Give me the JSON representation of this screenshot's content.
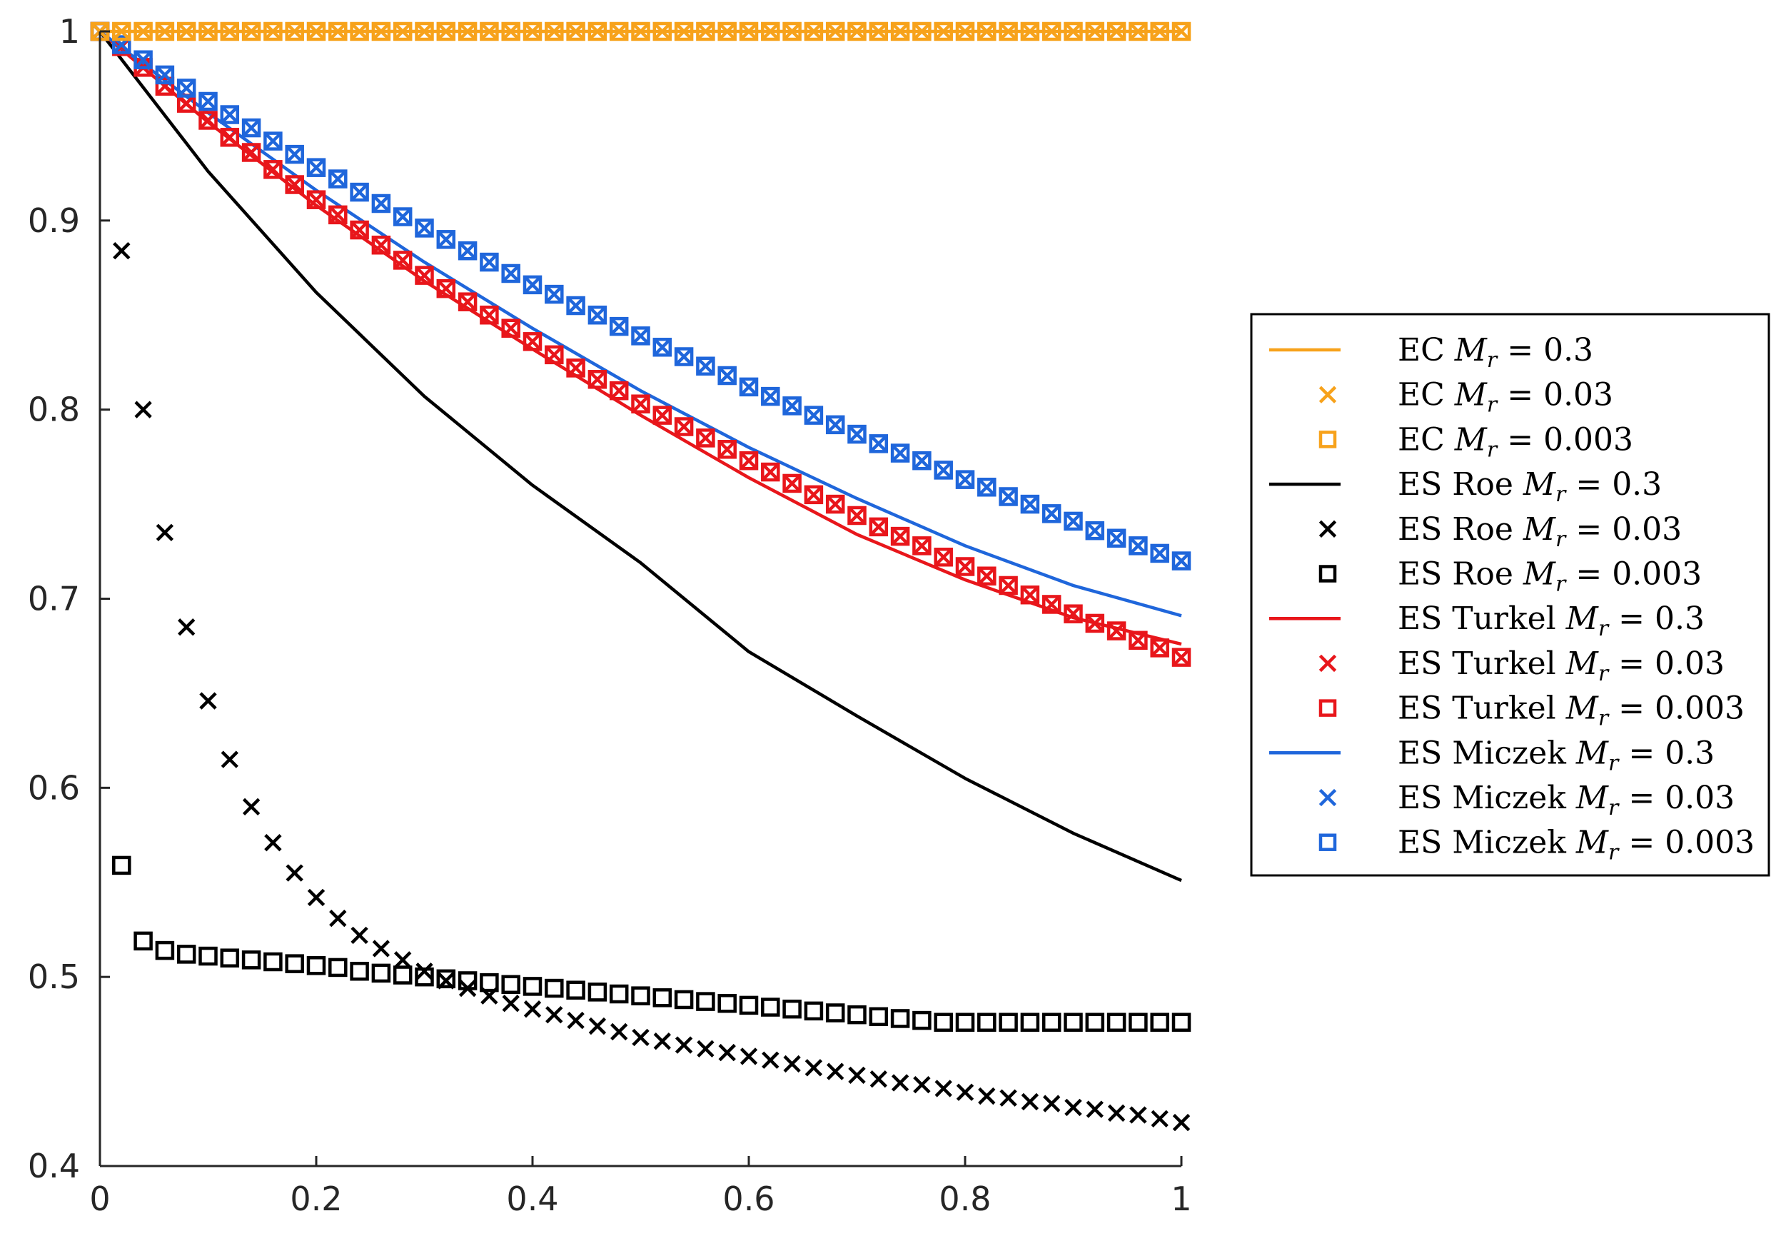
{
  "chart_data": {
    "type": "line",
    "title": "",
    "xlabel": "",
    "ylabel": "",
    "xlim": [
      0,
      1
    ],
    "ylim": [
      0.4,
      1
    ],
    "x_ticks": [
      0,
      0.2,
      0.4,
      0.6,
      0.8,
      1
    ],
    "x_tick_labels": [
      "0",
      "0.2",
      "0.4",
      "0.6",
      "0.8",
      "1"
    ],
    "y_ticks": [
      0.4,
      0.5,
      0.6,
      0.7,
      0.8,
      0.9,
      1
    ],
    "y_tick_labels": [
      "0.4",
      "0.5",
      "0.6",
      "0.7",
      "0.8",
      "0.9",
      "1"
    ],
    "grid": false,
    "legend_position": "outside-right",
    "colors": {
      "ec": "#f7a21b",
      "roe": "#000000",
      "turkel": "#e8161b",
      "miczek": "#1f66db",
      "axis": "#262626"
    },
    "marker_x": [
      0,
      0.02,
      0.04,
      0.06,
      0.08,
      0.1,
      0.12,
      0.14,
      0.16,
      0.18,
      0.2,
      0.22,
      0.24,
      0.26,
      0.28,
      0.3,
      0.32,
      0.34,
      0.36,
      0.38,
      0.4,
      0.42,
      0.44,
      0.46,
      0.48,
      0.5,
      0.52,
      0.54,
      0.56,
      0.58,
      0.6,
      0.62,
      0.64,
      0.66,
      0.68,
      0.7,
      0.72,
      0.74,
      0.76,
      0.78,
      0.8,
      0.82,
      0.84,
      0.86,
      0.88,
      0.9,
      0.92,
      0.94,
      0.96,
      0.98,
      1
    ],
    "line_x": [
      0,
      0.1,
      0.2,
      0.3,
      0.4,
      0.5,
      0.6,
      0.7,
      0.8,
      0.9,
      1
    ],
    "series": [
      {
        "name": "EC M_r = 0.3",
        "label_prefix": "EC",
        "mach_value": "0.3",
        "color": "#f7a21b",
        "style": "line",
        "y": [
          1,
          1,
          1,
          1,
          1,
          1,
          1,
          1,
          1,
          1,
          1
        ]
      },
      {
        "name": "EC M_r = 0.03",
        "label_prefix": "EC",
        "mach_value": "0.03",
        "color": "#f7a21b",
        "style": "x",
        "y": [
          1,
          1,
          1,
          1,
          1,
          1,
          1,
          1,
          1,
          1,
          1,
          1,
          1,
          1,
          1,
          1,
          1,
          1,
          1,
          1,
          1,
          1,
          1,
          1,
          1,
          1,
          1,
          1,
          1,
          1,
          1,
          1,
          1,
          1,
          1,
          1,
          1,
          1,
          1,
          1,
          1,
          1,
          1,
          1,
          1,
          1,
          1,
          1,
          1,
          1,
          1
        ]
      },
      {
        "name": "EC M_r = 0.003",
        "label_prefix": "EC",
        "mach_value": "0.003",
        "color": "#f7a21b",
        "style": "square",
        "y": [
          1,
          1,
          1,
          1,
          1,
          1,
          1,
          1,
          1,
          1,
          1,
          1,
          1,
          1,
          1,
          1,
          1,
          1,
          1,
          1,
          1,
          1,
          1,
          1,
          1,
          1,
          1,
          1,
          1,
          1,
          1,
          1,
          1,
          1,
          1,
          1,
          1,
          1,
          1,
          1,
          1,
          1,
          1,
          1,
          1,
          1,
          1,
          1,
          1,
          1,
          1
        ]
      },
      {
        "name": "ES Roe M_r = 0.3",
        "label_prefix": "ES Roe",
        "mach_value": "0.3",
        "color": "#000000",
        "style": "line",
        "y": [
          1,
          0.926,
          0.862,
          0.807,
          0.76,
          0.719,
          0.672,
          0.638,
          0.605,
          0.576,
          0.551
        ]
      },
      {
        "name": "ES Roe M_r = 0.03",
        "label_prefix": "ES Roe",
        "mach_value": "0.03",
        "color": "#000000",
        "style": "x",
        "y": [
          1,
          0.884,
          0.8,
          0.735,
          0.685,
          0.646,
          0.615,
          0.59,
          0.571,
          0.555,
          0.542,
          0.531,
          0.522,
          0.515,
          0.509,
          0.503,
          0.498,
          0.494,
          0.49,
          0.486,
          0.483,
          0.48,
          0.477,
          0.474,
          0.471,
          0.468,
          0.466,
          0.464,
          0.462,
          0.46,
          0.458,
          0.456,
          0.454,
          0.452,
          0.45,
          0.448,
          0.446,
          0.444,
          0.443,
          0.441,
          0.439,
          0.437,
          0.436,
          0.434,
          0.433,
          0.431,
          0.43,
          0.428,
          0.427,
          0.425,
          0.423
        ]
      },
      {
        "name": "ES Roe M_r = 0.003",
        "label_prefix": "ES Roe",
        "mach_value": "0.003",
        "color": "#000000",
        "style": "square",
        "y": [
          1,
          0.559,
          0.519,
          0.514,
          0.512,
          0.511,
          0.51,
          0.509,
          0.508,
          0.507,
          0.506,
          0.505,
          0.503,
          0.502,
          0.501,
          0.5,
          0.499,
          0.498,
          0.497,
          0.496,
          0.495,
          0.494,
          0.493,
          0.492,
          0.491,
          0.49,
          0.489,
          0.488,
          0.487,
          0.486,
          0.485,
          0.484,
          0.483,
          0.482,
          0.481,
          0.48,
          0.479,
          0.478,
          0.477,
          0.476,
          0.476,
          0.476,
          0.476,
          0.476,
          0.476,
          0.476,
          0.476,
          0.476,
          0.476,
          0.476,
          0.476
        ]
      },
      {
        "name": "ES Turkel M_r = 0.3",
        "label_prefix": "ES Turkel",
        "mach_value": "0.3",
        "color": "#e8161b",
        "style": "line",
        "y": [
          1,
          0.952,
          0.908,
          0.868,
          0.832,
          0.797,
          0.764,
          0.734,
          0.71,
          0.69,
          0.676
        ]
      },
      {
        "name": "ES Turkel M_r = 0.03",
        "label_prefix": "ES Turkel",
        "mach_value": "0.03",
        "color": "#e8161b",
        "style": "x",
        "y": [
          1,
          0.992,
          0.981,
          0.971,
          0.962,
          0.953,
          0.944,
          0.936,
          0.927,
          0.919,
          0.911,
          0.903,
          0.895,
          0.887,
          0.879,
          0.871,
          0.864,
          0.857,
          0.85,
          0.843,
          0.836,
          0.829,
          0.822,
          0.816,
          0.81,
          0.803,
          0.797,
          0.791,
          0.785,
          0.779,
          0.773,
          0.767,
          0.761,
          0.755,
          0.75,
          0.744,
          0.738,
          0.733,
          0.728,
          0.722,
          0.717,
          0.712,
          0.707,
          0.702,
          0.697,
          0.692,
          0.687,
          0.683,
          0.678,
          0.674,
          0.669
        ]
      },
      {
        "name": "ES Turkel M_r = 0.003",
        "label_prefix": "ES Turkel",
        "mach_value": "0.003",
        "color": "#e8161b",
        "style": "square",
        "y": [
          1,
          0.992,
          0.981,
          0.971,
          0.962,
          0.953,
          0.944,
          0.936,
          0.927,
          0.919,
          0.911,
          0.903,
          0.895,
          0.887,
          0.879,
          0.871,
          0.864,
          0.857,
          0.85,
          0.843,
          0.836,
          0.829,
          0.822,
          0.816,
          0.81,
          0.803,
          0.797,
          0.791,
          0.785,
          0.779,
          0.773,
          0.767,
          0.761,
          0.755,
          0.75,
          0.744,
          0.738,
          0.733,
          0.728,
          0.722,
          0.717,
          0.712,
          0.707,
          0.702,
          0.697,
          0.692,
          0.687,
          0.683,
          0.678,
          0.674,
          0.669
        ]
      },
      {
        "name": "ES Miczek M_r = 0.3",
        "label_prefix": "ES Miczek",
        "mach_value": "0.3",
        "color": "#1f66db",
        "style": "line",
        "y": [
          1,
          0.957,
          0.916,
          0.878,
          0.843,
          0.81,
          0.78,
          0.753,
          0.728,
          0.707,
          0.691
        ]
      },
      {
        "name": "ES Miczek M_r = 0.03",
        "label_prefix": "ES Miczek",
        "mach_value": "0.03",
        "color": "#1f66db",
        "style": "x",
        "y": [
          1,
          0.993,
          0.985,
          0.977,
          0.97,
          0.963,
          0.956,
          0.949,
          0.942,
          0.935,
          0.928,
          0.922,
          0.915,
          0.909,
          0.902,
          0.896,
          0.89,
          0.884,
          0.878,
          0.872,
          0.866,
          0.861,
          0.855,
          0.85,
          0.844,
          0.839,
          0.833,
          0.828,
          0.823,
          0.818,
          0.812,
          0.807,
          0.802,
          0.797,
          0.792,
          0.787,
          0.782,
          0.777,
          0.773,
          0.768,
          0.763,
          0.759,
          0.754,
          0.75,
          0.745,
          0.741,
          0.736,
          0.732,
          0.728,
          0.724,
          0.72
        ]
      },
      {
        "name": "ES Miczek M_r = 0.003",
        "label_prefix": "ES Miczek",
        "mach_value": "0.003",
        "color": "#1f66db",
        "style": "square",
        "y": [
          1,
          0.993,
          0.985,
          0.977,
          0.97,
          0.963,
          0.956,
          0.949,
          0.942,
          0.935,
          0.928,
          0.922,
          0.915,
          0.909,
          0.902,
          0.896,
          0.89,
          0.884,
          0.878,
          0.872,
          0.866,
          0.861,
          0.855,
          0.85,
          0.844,
          0.839,
          0.833,
          0.828,
          0.823,
          0.818,
          0.812,
          0.807,
          0.802,
          0.797,
          0.792,
          0.787,
          0.782,
          0.777,
          0.773,
          0.768,
          0.763,
          0.759,
          0.754,
          0.75,
          0.745,
          0.741,
          0.736,
          0.732,
          0.728,
          0.724,
          0.72
        ]
      }
    ],
    "legend": {
      "entries": [
        {
          "prefix": "EC",
          "symbol": "M",
          "subscript": "r",
          "relation": "=",
          "value": "0.3"
        },
        {
          "prefix": "EC",
          "symbol": "M",
          "subscript": "r",
          "relation": "=",
          "value": "0.03"
        },
        {
          "prefix": "EC",
          "symbol": "M",
          "subscript": "r",
          "relation": "=",
          "value": "0.003"
        },
        {
          "prefix": "ES Roe",
          "symbol": "M",
          "subscript": "r",
          "relation": "=",
          "value": "0.3"
        },
        {
          "prefix": "ES Roe",
          "symbol": "M",
          "subscript": "r",
          "relation": "=",
          "value": "0.03"
        },
        {
          "prefix": "ES Roe",
          "symbol": "M",
          "subscript": "r",
          "relation": "=",
          "value": "0.003"
        },
        {
          "prefix": "ES Turkel",
          "symbol": "M",
          "subscript": "r",
          "relation": "=",
          "value": "0.3"
        },
        {
          "prefix": "ES Turkel",
          "symbol": "M",
          "subscript": "r",
          "relation": "=",
          "value": "0.03"
        },
        {
          "prefix": "ES Turkel",
          "symbol": "M",
          "subscript": "r",
          "relation": "=",
          "value": "0.003"
        },
        {
          "prefix": "ES Miczek",
          "symbol": "M",
          "subscript": "r",
          "relation": "=",
          "value": "0.3"
        },
        {
          "prefix": "ES Miczek",
          "symbol": "M",
          "subscript": "r",
          "relation": "=",
          "value": "0.03"
        },
        {
          "prefix": "ES Miczek",
          "symbol": "M",
          "subscript": "r",
          "relation": "=",
          "value": "0.003"
        }
      ]
    }
  }
}
